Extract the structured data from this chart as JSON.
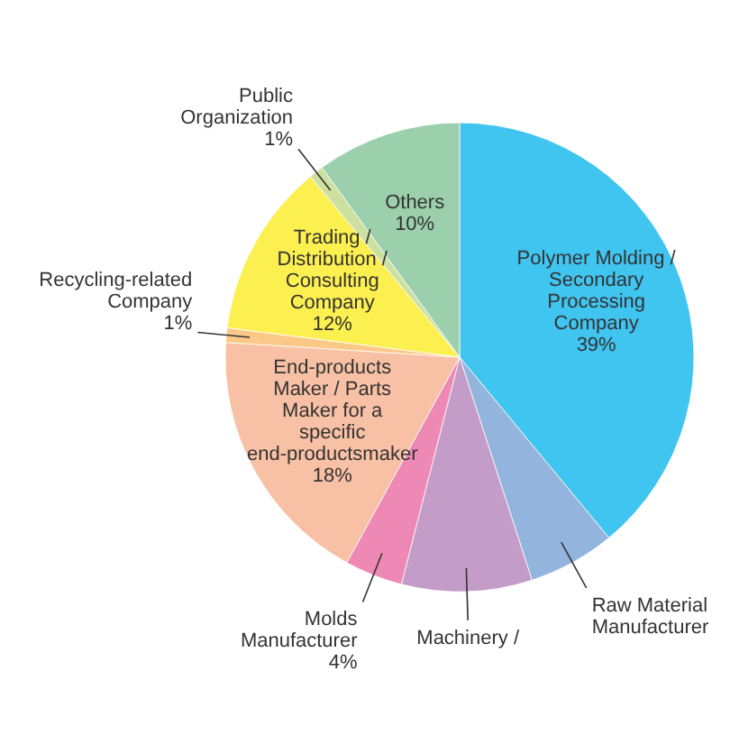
{
  "chart_data": {
    "type": "pie",
    "categories": [
      "Polymer Molding / Secondary Processing Company",
      "Raw Material Manufacturer",
      "Machinery /",
      "Molds Manufacturer",
      "End-products Maker / Parts Maker for a specific end-productsmaker",
      "Recycling-related Company",
      "Trading / Distribution / Consulting Company",
      "Public Organization",
      "Others"
    ],
    "values": [
      39,
      6,
      9,
      4,
      18,
      1,
      12,
      1,
      10
    ],
    "value_labels": [
      "39%",
      null,
      null,
      "4%",
      "18%",
      "1%",
      "12%",
      "1%",
      "10%"
    ],
    "colors": [
      "#40c4f0",
      "#93b4dc",
      "#c49cc8",
      "#ee88b4",
      "#f8c0a4",
      "#fcc888",
      "#fcf050",
      "#cce0a0",
      "#9cd0ac"
    ]
  }
}
